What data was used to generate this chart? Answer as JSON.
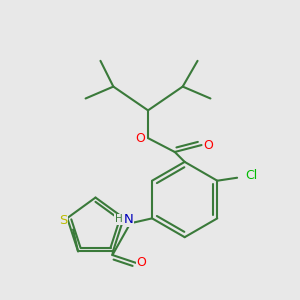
{
  "bg": "#e8e8e8",
  "bond_color": "#3a7a3a",
  "atom_colors": {
    "O": "#ff0000",
    "N": "#0000bb",
    "S": "#bbbb00",
    "Cl": "#00bb00",
    "C": "#3a7a3a",
    "H": "#3a7a3a"
  },
  "lw": 1.5,
  "fs": 8.5,
  "figsize": [
    3.0,
    3.0
  ],
  "dpi": 100
}
